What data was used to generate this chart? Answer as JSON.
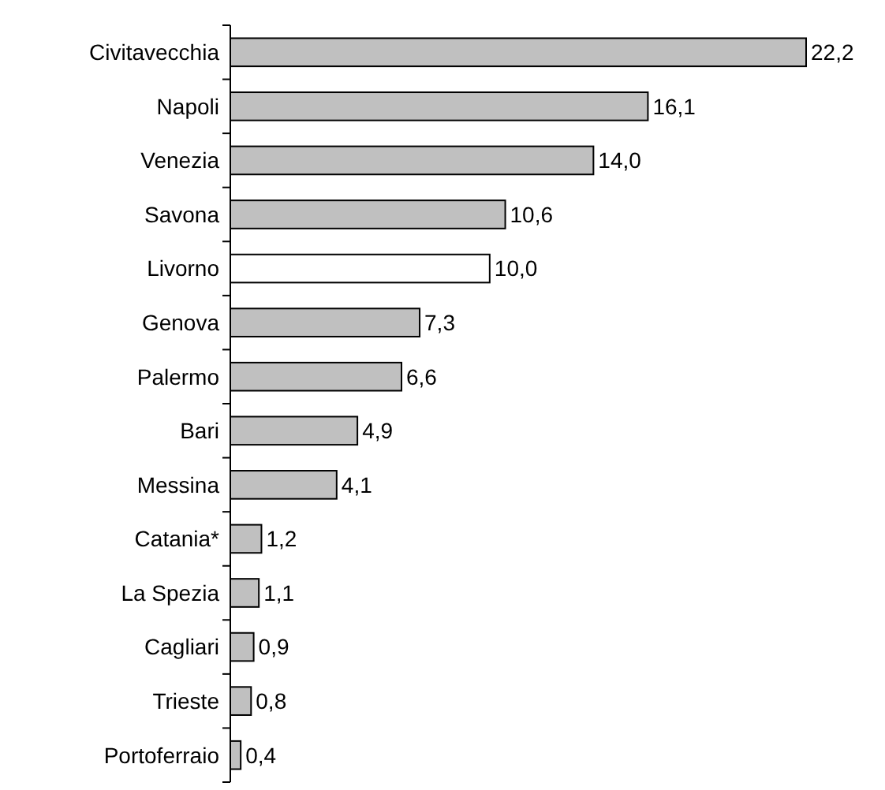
{
  "chart_data": {
    "type": "bar",
    "orientation": "horizontal",
    "categories": [
      "Civitavecchia",
      "Napoli",
      "Venezia",
      "Savona",
      "Livorno",
      "Genova",
      "Palermo",
      "Bari",
      "Messina",
      "Catania*",
      "La Spezia",
      "Cagliari",
      "Trieste",
      "Portoferraio"
    ],
    "values": [
      22.2,
      16.1,
      14.0,
      10.6,
      10.0,
      7.3,
      6.6,
      4.9,
      4.1,
      1.2,
      1.1,
      0.9,
      0.8,
      0.4
    ],
    "value_labels": [
      "22,2",
      "16,1",
      "14,0",
      "10,6",
      "10,0",
      "7,3",
      "6,6",
      "4,9",
      "4,1",
      "1,2",
      "1,1",
      "0,9",
      "0,8",
      "0,4"
    ],
    "colors": [
      "#c0c0c0",
      "#c0c0c0",
      "#c0c0c0",
      "#c0c0c0",
      "#ffffff",
      "#c0c0c0",
      "#c0c0c0",
      "#c0c0c0",
      "#c0c0c0",
      "#c0c0c0",
      "#c0c0c0",
      "#c0c0c0",
      "#c0c0c0",
      "#c0c0c0"
    ]
  }
}
